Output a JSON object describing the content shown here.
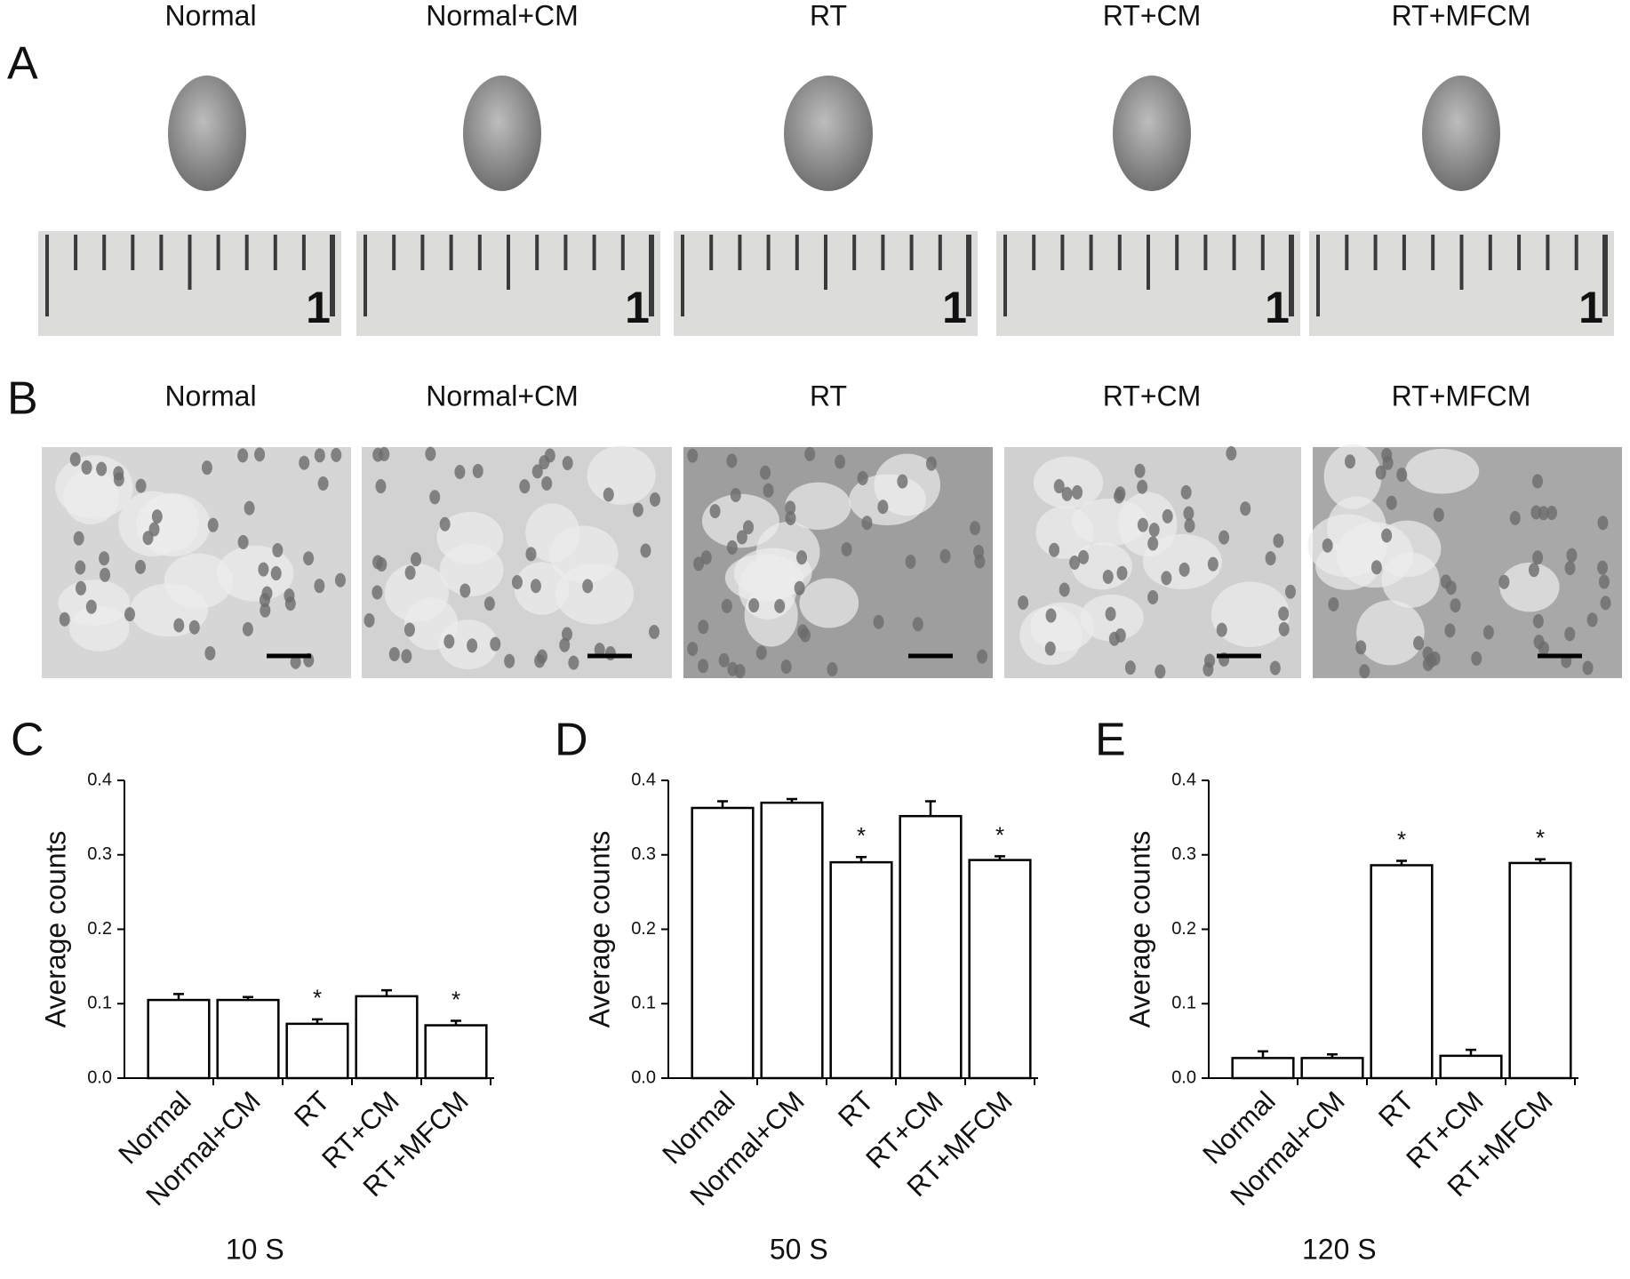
{
  "panel_a": {
    "label": "A",
    "titles": [
      "Normal",
      "Normal+CM",
      "RT",
      "RT+CM",
      "RT+MFCM"
    ],
    "ruler_label": "1"
  },
  "panel_b": {
    "label": "B",
    "titles": [
      "Normal",
      "Normal+CM",
      "RT",
      "RT+CM",
      "RT+MFCM"
    ]
  },
  "chart_data": [
    {
      "type": "bar",
      "panel": "C",
      "ylabel": "Average counts",
      "xlabel": "10 S",
      "categories": [
        "Normal",
        "Normal+CM",
        "RT",
        "RT+CM",
        "RT+MFCM"
      ],
      "values": [
        0.105,
        0.105,
        0.073,
        0.11,
        0.071
      ],
      "errors": [
        0.008,
        0.004,
        0.006,
        0.008,
        0.006
      ],
      "significance_labels": [
        null,
        null,
        "*",
        null,
        "*"
      ],
      "color": "#ffffff",
      "ylim": [
        0,
        0.4
      ],
      "yticks": [
        {
          "value": 0,
          "label": "0.0"
        },
        0.1,
        0.2,
        0.3,
        0.4
      ]
    },
    {
      "type": "bar",
      "panel": "D",
      "ylabel": "Average counts",
      "xlabel": "50 S",
      "categories": [
        "Normal",
        "Normal+CM",
        "RT",
        "RT+CM",
        "RT+MFCM"
      ],
      "values": [
        0.363,
        0.37,
        0.29,
        0.352,
        0.293
      ],
      "errors": [
        0.009,
        0.005,
        0.007,
        0.02,
        0.005
      ],
      "significance_labels": [
        null,
        null,
        "*",
        null,
        "*"
      ],
      "color": "#ffffff",
      "ylim": [
        0,
        0.4
      ],
      "yticks": [
        {
          "value": 0,
          "label": "0.0"
        },
        0.1,
        0.2,
        0.3,
        0.4
      ]
    },
    {
      "type": "bar",
      "panel": "E",
      "ylabel": "Average counts",
      "xlabel": "120 S",
      "categories": [
        "Normal",
        "Normal+CM",
        "RT",
        "RT+CM",
        "RT+MFCM"
      ],
      "values": [
        0.027,
        0.027,
        0.286,
        0.03,
        0.289
      ],
      "errors": [
        0.009,
        0.005,
        0.006,
        0.008,
        0.005
      ],
      "significance_labels": [
        null,
        null,
        "*",
        null,
        "*"
      ],
      "color": "#ffffff",
      "ylim": [
        0,
        0.4
      ],
      "yticks": [
        {
          "value": 0,
          "label": "0.0"
        },
        0.1,
        0.2,
        0.3,
        0.4
      ]
    }
  ]
}
